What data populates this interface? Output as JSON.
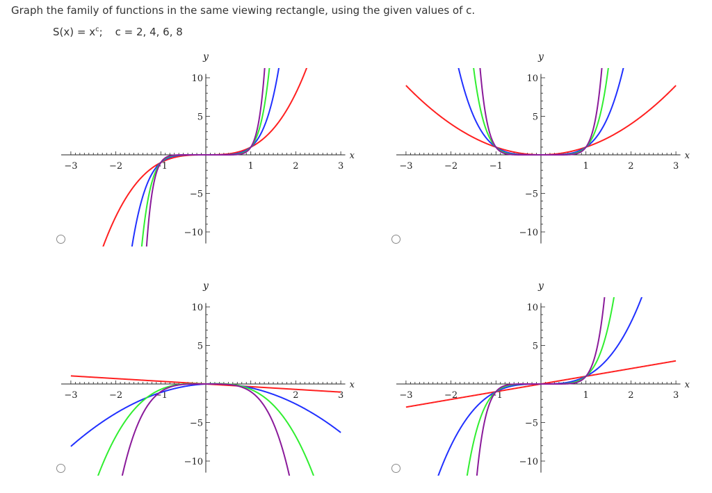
{
  "question": {
    "prompt": "Graph the family of functions in the same viewing rectangle, using the given values of c.",
    "function_lhs": "S(x) = x",
    "function_exp": "c",
    "function_tail": ";",
    "c_values": "c = 2, 4, 6, 8"
  },
  "colors": {
    "curve1": "#ff2020",
    "curve2": "#2030ff",
    "curve3": "#30ee30",
    "curve4": "#8a1a9a",
    "axis": "#222222"
  },
  "chart_data": [
    {
      "type": "line",
      "xlabel": "x",
      "ylabel": "y",
      "xlim": [
        -3,
        3
      ],
      "ylim": [
        -10,
        10
      ],
      "x_ticks": [
        "-3",
        "-2",
        "-1",
        "1",
        "2",
        "3"
      ],
      "y_ticks": [
        "10",
        "5",
        "-5",
        "-10"
      ],
      "series": [
        {
          "formula": "x^3",
          "color": "#ff2020",
          "x_domain": [
            -3,
            3
          ]
        },
        {
          "formula": "x^5",
          "color": "#2030ff",
          "x_domain": [
            -3,
            3
          ]
        },
        {
          "formula": "x^7",
          "color": "#30ee30",
          "x_domain": [
            -3,
            3
          ]
        },
        {
          "formula": "x^9",
          "color": "#8a1a9a",
          "x_domain": [
            -3,
            3
          ]
        }
      ]
    },
    {
      "type": "line",
      "xlabel": "x",
      "ylabel": "y",
      "xlim": [
        -3,
        3
      ],
      "ylim": [
        -10,
        10
      ],
      "x_ticks": [
        "-3",
        "-2",
        "-1",
        "1",
        "2",
        "3"
      ],
      "y_ticks": [
        "10",
        "5",
        "-5",
        "-10"
      ],
      "series": [
        {
          "formula": "x^2",
          "color": "#ff2020",
          "x_domain": [
            -3,
            3
          ]
        },
        {
          "formula": "x^4",
          "color": "#2030ff",
          "x_domain": [
            -3,
            3
          ]
        },
        {
          "formula": "x^6",
          "color": "#30ee30",
          "x_domain": [
            -3,
            3
          ]
        },
        {
          "formula": "x^8",
          "color": "#8a1a9a",
          "x_domain": [
            -3,
            3
          ]
        }
      ]
    },
    {
      "type": "line",
      "xlabel": "x",
      "ylabel": "y",
      "xlim": [
        -3,
        3
      ],
      "ylim": [
        -10,
        10
      ],
      "x_ticks": [
        "-3",
        "-2",
        "-1",
        "2",
        "3"
      ],
      "y_ticks": [
        "10",
        "5",
        "-5",
        "-10"
      ],
      "series": [
        {
          "formula": "-x^(1/2)",
          "color": "#ff2020",
          "x_domain": [
            -3,
            3
          ]
        },
        {
          "formula": "-x^(4/2)",
          "color": "#2030ff",
          "x_domain": [
            -3,
            3
          ]
        },
        {
          "formula": "-x^(6/2)",
          "color": "#30ee30",
          "x_domain": [
            -3,
            3
          ]
        },
        {
          "formula": "-x^(8/2)",
          "color": "#8a1a9a",
          "x_domain": [
            -3,
            3
          ]
        }
      ]
    },
    {
      "type": "line",
      "xlabel": "x",
      "ylabel": "y",
      "xlim": [
        -3,
        3
      ],
      "ylim": [
        -10,
        10
      ],
      "x_ticks": [
        "-3",
        "-2",
        "-1",
        "1",
        "2",
        "3"
      ],
      "y_ticks": [
        "10",
        "5",
        "-5",
        "-10"
      ],
      "series": [
        {
          "formula": "x",
          "color": "#ff2020",
          "x_domain": [
            -3,
            3
          ]
        },
        {
          "formula": "x^3",
          "color": "#2030ff",
          "x_domain": [
            -3,
            3
          ]
        },
        {
          "formula": "x^5",
          "color": "#30ee30",
          "x_domain": [
            -3,
            3
          ]
        },
        {
          "formula": "x^7",
          "color": "#8a1a9a",
          "x_domain": [
            -3,
            3
          ]
        }
      ]
    }
  ]
}
